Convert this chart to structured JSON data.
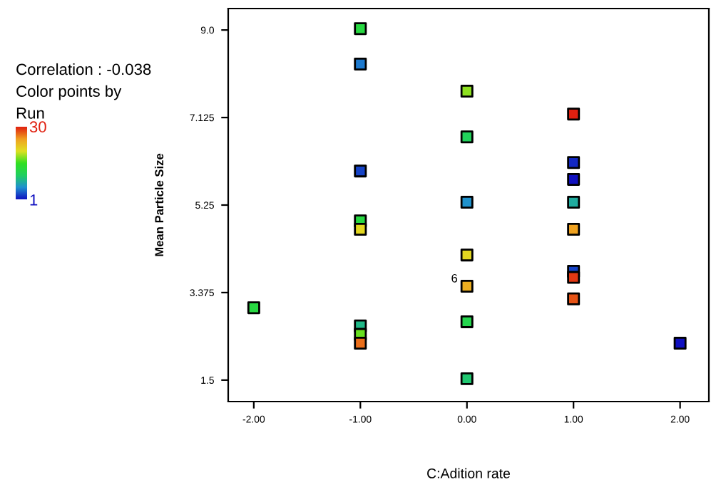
{
  "chart_data": {
    "type": "scatter",
    "xlabel": "C:Adition rate",
    "ylabel": "Mean Particle Size",
    "clabel": "Run",
    "annotations": [
      "Correlation : -0.038",
      "Color points by",
      {
        "text": "6",
        "x": 0,
        "y": 3.51
      }
    ],
    "x": [
      -2,
      -1,
      -1,
      -1,
      -1,
      -1,
      -1,
      -1,
      -1,
      0,
      0,
      0,
      0,
      0,
      0,
      0,
      1,
      1,
      1,
      1,
      1,
      1,
      1,
      1,
      2
    ],
    "values": [
      3.05,
      9.03,
      8.27,
      5.98,
      4.91,
      4.73,
      2.66,
      2.48,
      2.29,
      7.69,
      6.71,
      5.31,
      4.18,
      3.51,
      2.75,
      1.53,
      7.2,
      6.16,
      5.8,
      5.31,
      4.73,
      3.83,
      3.24,
      3.7,
      2.29
    ],
    "cvalues": [
      13,
      13,
      5,
      3,
      13,
      21,
      9,
      17,
      27,
      18,
      11,
      6,
      21,
      24,
      12,
      10,
      30,
      2,
      1,
      8,
      25,
      3,
      28,
      29,
      1
    ],
    "clim": [
      1,
      30
    ],
    "cticks": [
      1,
      30
    ],
    "xlim": [
      -2.24,
      2.27
    ],
    "ylim": [
      1.04,
      9.46
    ],
    "xticks": [
      {
        "value": -2,
        "label": "-2.00"
      },
      {
        "value": -1,
        "label": "-1.00"
      },
      {
        "value": 0,
        "label": "0.00"
      },
      {
        "value": 1,
        "label": "1.00"
      },
      {
        "value": 2,
        "label": "2.00"
      }
    ],
    "yticks": [
      1.5,
      3.375,
      5.25,
      7.125,
      {
        "value": 9,
        "label": "9.0"
      }
    ],
    "marker": "square",
    "grid": false,
    "legend": false
  }
}
